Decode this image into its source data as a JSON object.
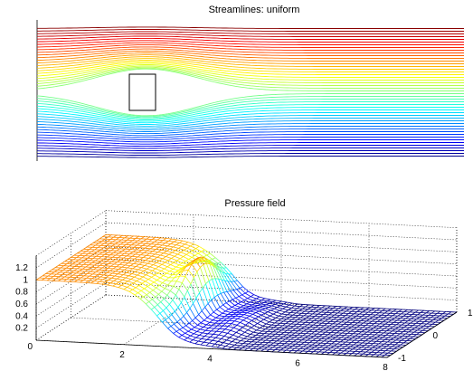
{
  "chart_data": [
    {
      "type": "line",
      "title": "Streamlines: uniform",
      "xlabel": "",
      "ylabel": "",
      "x_range": [
        0,
        8
      ],
      "y_range": [
        -1,
        1
      ],
      "streamline_count": 48,
      "obstacle": {
        "x": [
          1.7,
          2.4
        ],
        "y": [
          -0.22,
          0.22
        ]
      },
      "colormap": "jet",
      "axes": "off"
    },
    {
      "type": "surface",
      "title": "Pressure field",
      "xlabel": "",
      "ylabel": "",
      "zlabel": "",
      "x_ticks": [
        "2",
        "4",
        "6",
        "8"
      ],
      "y_ticks": [
        "-1",
        "0",
        "1"
      ],
      "z_ticks": [
        "0.2",
        "0.4",
        "0.6",
        "0.8",
        "1",
        "1.2"
      ],
      "origin_label": "0",
      "x_range": [
        0,
        8
      ],
      "y_range": [
        -1,
        1
      ],
      "z_range": [
        0,
        1.4
      ],
      "peak": {
        "x": 2.85,
        "y": 0.15,
        "z": 1.35
      },
      "upstream_level": 1.0,
      "downstream_level": 0.0,
      "colormap": "jet",
      "grid": true
    }
  ]
}
